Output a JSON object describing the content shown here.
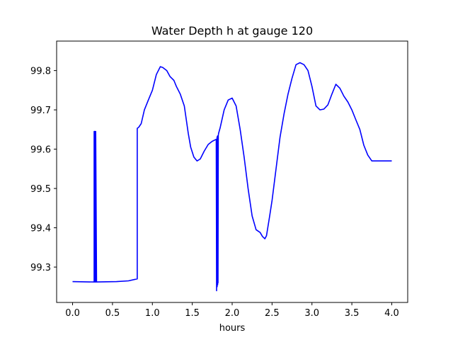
{
  "chart_data": {
    "type": "line",
    "title": "Water Depth h at gauge 120",
    "xlabel": "hours",
    "ylabel": "",
    "xlim": [
      -0.2,
      4.2
    ],
    "ylim": [
      99.21,
      99.875
    ],
    "xticks": [
      0.0,
      0.5,
      1.0,
      1.5,
      2.0,
      2.5,
      3.0,
      3.5,
      4.0
    ],
    "xtick_labels": [
      "0.0",
      "0.5",
      "1.0",
      "1.5",
      "2.0",
      "2.5",
      "3.0",
      "3.5",
      "4.0"
    ],
    "yticks": [
      99.3,
      99.4,
      99.5,
      99.6,
      99.7,
      99.8
    ],
    "ytick_labels": [
      "99.3",
      "99.4",
      "99.5",
      "99.6",
      "99.7",
      "99.8"
    ],
    "grid": false,
    "series": [
      {
        "color": "#0000ff",
        "x": [
          0.0,
          0.27,
          0.27,
          0.28,
          0.28,
          0.29,
          0.29,
          0.3,
          0.55,
          0.7,
          0.81,
          0.81,
          0.83,
          0.86,
          0.9,
          0.95,
          1.0,
          1.05,
          1.1,
          1.13,
          1.18,
          1.22,
          1.27,
          1.3,
          1.35,
          1.4,
          1.45,
          1.48,
          1.52,
          1.56,
          1.6,
          1.65,
          1.7,
          1.75,
          1.8,
          1.805,
          1.81,
          1.812,
          1.815,
          1.818,
          1.82,
          1.823,
          1.826,
          1.83,
          1.85,
          1.9,
          1.95,
          2.0,
          2.05,
          2.1,
          2.15,
          2.2,
          2.25,
          2.3,
          2.35,
          2.38,
          2.41,
          2.43,
          2.47,
          2.5,
          2.55,
          2.6,
          2.65,
          2.7,
          2.75,
          2.8,
          2.85,
          2.9,
          2.95,
          3.0,
          3.05,
          3.1,
          3.15,
          3.2,
          3.25,
          3.3,
          3.35,
          3.4,
          3.45,
          3.5,
          3.55,
          3.6,
          3.65,
          3.7,
          3.75,
          3.8,
          3.85,
          3.9,
          3.95,
          4.0
        ],
        "y": [
          99.263,
          99.262,
          99.645,
          99.645,
          99.262,
          99.262,
          99.645,
          99.262,
          99.263,
          99.265,
          99.27,
          99.653,
          99.656,
          99.665,
          99.7,
          99.725,
          99.75,
          99.79,
          99.81,
          99.808,
          99.8,
          99.785,
          99.775,
          99.76,
          99.74,
          99.71,
          99.64,
          99.605,
          99.58,
          99.57,
          99.575,
          99.595,
          99.612,
          99.62,
          99.625,
          99.24,
          99.63,
          99.25,
          99.633,
          99.255,
          99.634,
          99.26,
          99.635,
          99.64,
          99.655,
          99.7,
          99.725,
          99.73,
          99.71,
          99.65,
          99.58,
          99.5,
          99.43,
          99.395,
          99.388,
          99.378,
          99.372,
          99.38,
          99.43,
          99.47,
          99.55,
          99.63,
          99.69,
          99.74,
          99.78,
          99.815,
          99.82,
          99.815,
          99.8,
          99.76,
          99.71,
          99.7,
          99.702,
          99.713,
          99.74,
          99.765,
          99.755,
          99.735,
          99.72,
          99.7,
          99.675,
          99.65,
          99.61,
          99.585,
          99.57,
          99.57,
          99.57,
          99.57,
          99.57,
          99.57
        ]
      }
    ]
  }
}
